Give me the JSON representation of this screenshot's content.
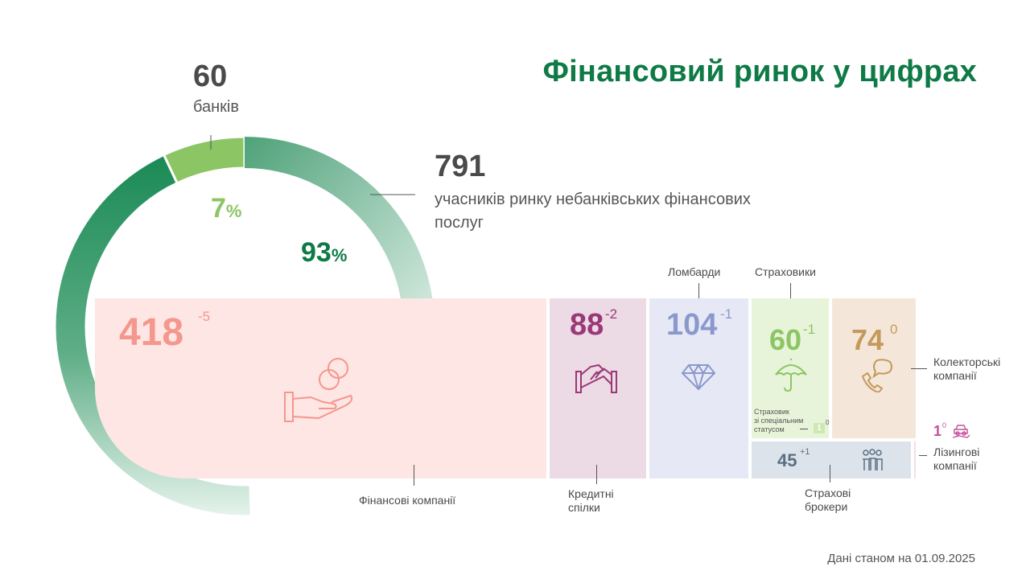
{
  "title": "Фінансовий ринок у цифрах",
  "chart_data": {
    "type": "pie",
    "slices": [
      {
        "label": "банків",
        "count": 60,
        "percent": 7,
        "color": "#8cc563"
      },
      {
        "label": "учасників ринку небанківських фінансових послуг",
        "count": 791,
        "percent": 93,
        "color": "#1a8a55"
      }
    ],
    "breakdown": {
      "type": "table",
      "items": [
        {
          "key": "finance",
          "label": "Фінансові компанії",
          "value": 418,
          "change": "-5",
          "color": "#f4978e",
          "bg": "#fde6e3"
        },
        {
          "key": "credit",
          "label": "Кредитні спілки",
          "value": 88,
          "change": "-2",
          "color": "#9b3877",
          "bg": "#ecdae5"
        },
        {
          "key": "pawn",
          "label": "Ломбарди",
          "value": 104,
          "change": "-1",
          "color": "#8b98cc",
          "bg": "#e6e9f5"
        },
        {
          "key": "insurers",
          "label": "Страховики",
          "value": 60,
          "change": "-1",
          "color": "#8cc563",
          "bg": "#e7f4d9"
        },
        {
          "key": "collectors",
          "label": "Колекторські компанії",
          "value": 74,
          "change": "0",
          "color": "#c49a5a",
          "bg": "#f4e7da"
        },
        {
          "key": "special",
          "label": "Страховик зі спеціальним статусом",
          "value": 1,
          "change": "0",
          "color": "#8cc563",
          "bg": "#cfe8b3"
        },
        {
          "key": "brokers",
          "label": "Страхові брокери",
          "value": 45,
          "change": "+1",
          "color": "#5a6f85",
          "bg": "#dde3ea"
        },
        {
          "key": "leasing",
          "label": "Лізингові компанії",
          "value": 1,
          "change": "0",
          "color": "#c4509a",
          "bg": "#f7dbe9"
        }
      ]
    }
  },
  "labels": {
    "banks_num": "60",
    "banks_lbl": "банків",
    "nb_num": "791",
    "nb_lbl": "учасників ринку небанківських фінансових послуг",
    "pct7": "7",
    "pct93": "93",
    "pct_sign": "%",
    "finance_lbl": "Фінансові компанії",
    "credit_lbl1": "Кредитні",
    "credit_lbl2": "спілки",
    "pawn_lbl": "Ломбарди",
    "insurers_lbl": "Страховики",
    "collectors_lbl1": "Колекторські",
    "collectors_lbl2": "компанії",
    "special_lbl1": "Страховик",
    "special_lbl2": "зі спеціальним",
    "special_lbl3": "статусом",
    "brokers_lbl1": "Страхові",
    "brokers_lbl2": "брокери",
    "leasing_lbl1": "Лізингові",
    "leasing_lbl2": "компанії"
  },
  "icons": {
    "finance": "hand-coins-icon",
    "credit": "handshake-icon",
    "pawn": "diamond-icon",
    "insurers": "umbrella-icon",
    "collectors": "phone-chat-icon",
    "brokers": "people-icon",
    "leasing": "car-hand-icon"
  },
  "footer": {
    "date": "Дані станом на 01.09.2025"
  }
}
